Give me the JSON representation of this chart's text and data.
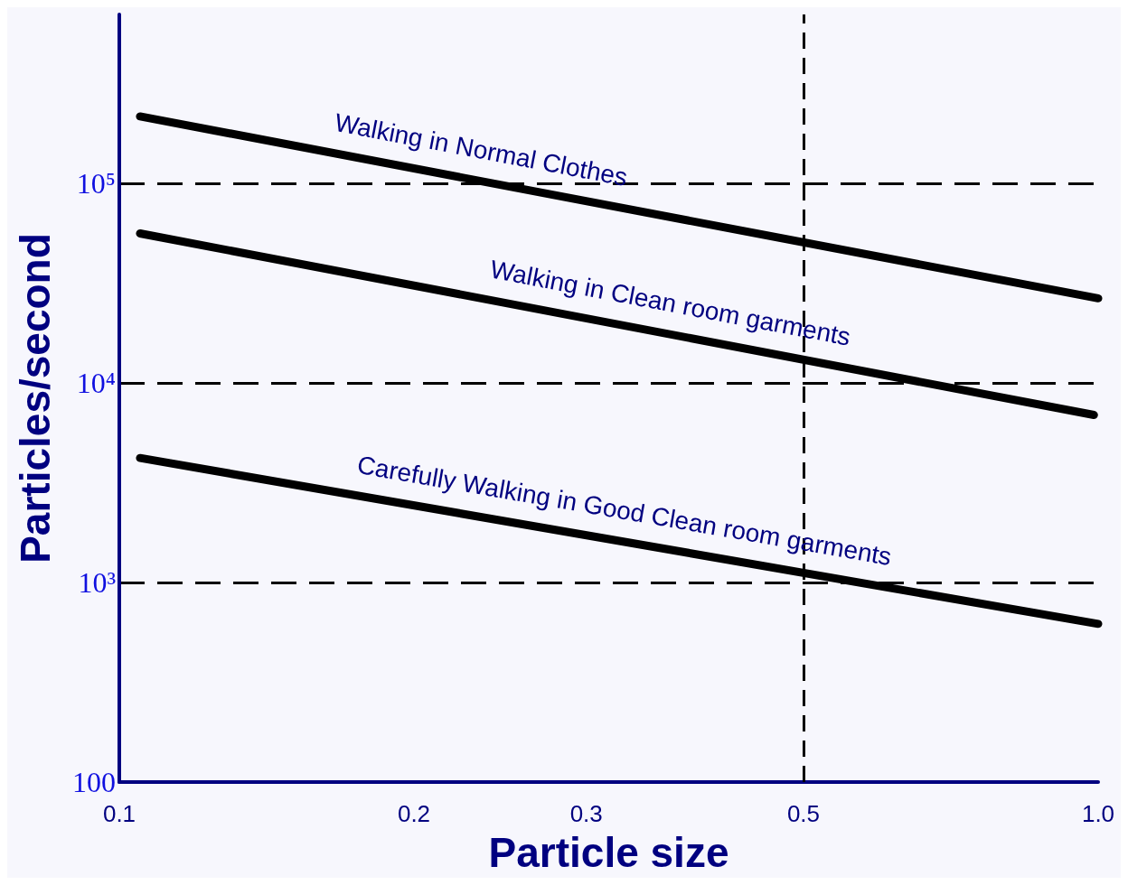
{
  "chart_data": {
    "type": "line",
    "xlabel": "Particle size",
    "ylabel": "Particles/second",
    "log": "xy",
    "grid": "y",
    "line_style": "solid",
    "legend": false,
    "xlim": [
      0.1,
      1.0
    ],
    "xticks": [
      0.1,
      0.2,
      0.3,
      0.5,
      {
        "value": 1.0,
        "label": "1.0"
      }
    ],
    "ylim": [
      100,
      700000
    ],
    "yticks": [
      100,
      {
        "value": 1000,
        "label": "10³"
      },
      {
        "value": 10000,
        "label": "10⁴"
      },
      {
        "value": 100000,
        "label": "10⁵"
      }
    ],
    "ref_lines": [
      {
        "axis": "x",
        "value": 0.5,
        "color": "#000000",
        "line_style": "dashed"
      }
    ],
    "series": [
      {
        "name": "Walking in Normal Clothes",
        "color": "#000000",
        "x": [
          0.105,
          1.0
        ],
        "values": [
          216000,
          26500
        ]
      },
      {
        "name": "Walking in Clean room garments",
        "color": "#000000",
        "x": [
          0.105,
          0.99
        ],
        "values": [
          56000,
          6900
        ]
      },
      {
        "name": "Carefully Walking in Good Clean room garments",
        "color": "#000000",
        "x": [
          0.105,
          1.0
        ],
        "values": [
          4200,
          620
        ]
      }
    ]
  }
}
